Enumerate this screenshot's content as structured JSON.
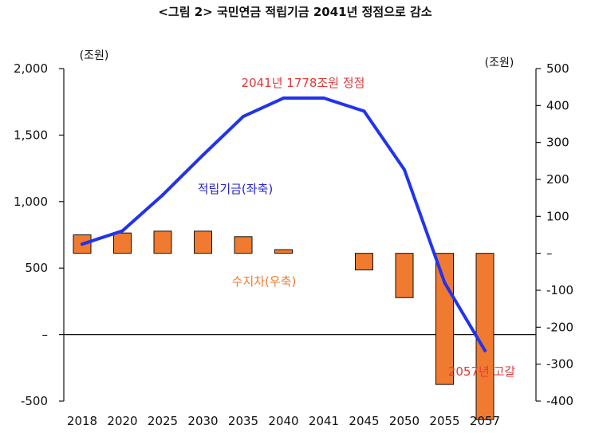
{
  "chart_data": {
    "title": "<그림 2> 국민연금 적립기금 2041년 정점으로 감소",
    "type": "bar+line",
    "categories": [
      "2018",
      "2020",
      "2025",
      "2030",
      "2035",
      "2040",
      "2041",
      "2045",
      "2050",
      "2055",
      "2057"
    ],
    "left_axis": {
      "unit": "(조원)",
      "ylim": [
        -500,
        2000
      ],
      "ticks": [
        2000,
        1500,
        1000,
        500,
        0,
        -500
      ],
      "tick_labels": [
        "2,000",
        "1,500",
        "1,000",
        "500",
        "–",
        "-500"
      ]
    },
    "right_axis": {
      "unit": "(조원)",
      "ylim": [
        -400,
        500
      ],
      "ticks": [
        500,
        400,
        300,
        200,
        100,
        0,
        -100,
        -200,
        -300,
        -400
      ],
      "tick_labels": [
        "500",
        "400",
        "300",
        "200",
        "100",
        "–",
        "-100",
        "-200",
        "-300",
        "-400"
      ]
    },
    "series": [
      {
        "name": "적립기금(좌축)",
        "type": "line",
        "axis": "left",
        "color": "#2233ee",
        "values": [
          680,
          780,
          1050,
          1350,
          1640,
          1778,
          1778,
          1680,
          1240,
          390,
          -120
        ]
      },
      {
        "name": "수지차(우축)",
        "type": "bar",
        "axis": "right",
        "color": "#f07a30",
        "values": [
          50,
          55,
          60,
          60,
          45,
          10,
          null,
          -45,
          -120,
          -355,
          -450
        ]
      }
    ],
    "annotations": {
      "peak": "2041년 1778조원 정점",
      "depletion": "2057년 고갈"
    },
    "grid": false
  }
}
